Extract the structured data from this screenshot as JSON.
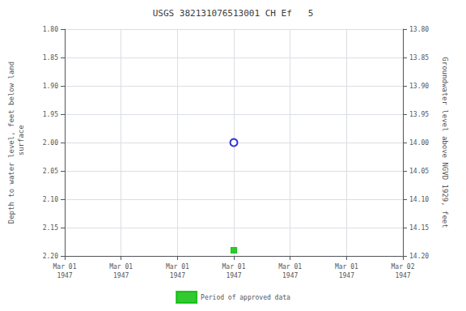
{
  "chart_data": {
    "type": "scatter",
    "title": "USGS 382131076513001 CH Ef   5",
    "ylabel": "Depth to water level, feet below land\n surface",
    "y2label": "Groundwater level above NGVD 1929, feet",
    "categories": [
      "Mar 01\n1947",
      "Mar 01\n1947",
      "Mar 01\n1947",
      "Mar 01\n1947",
      "Mar 01\n1947",
      "Mar 01\n1947",
      "Mar 02\n1947"
    ],
    "series": [
      {
        "color": "#0000cc",
        "marker": "hollow_circle",
        "values": [
          null,
          null,
          null,
          2.0,
          null,
          null,
          null
        ]
      },
      {
        "name": "Period of approved data",
        "color": "#00bb00",
        "marker": "square",
        "values": [
          null,
          null,
          null,
          2.19,
          null,
          null,
          null
        ]
      }
    ],
    "ylim": [
      2.2,
      1.8
    ],
    "yticks": [
      {
        "value": 1.8,
        "label": "1.80"
      },
      1.85,
      {
        "value": 1.9,
        "label": "1.90"
      },
      1.95,
      {
        "value": 2.0,
        "label": "2.00"
      },
      2.05,
      {
        "value": 2.1,
        "label": "2.10"
      },
      2.15,
      {
        "value": 2.2,
        "label": "2.20"
      }
    ],
    "y2lim": [
      14.2,
      13.8
    ],
    "y2ticks": [
      {
        "value": 14.2,
        "label": "14.20"
      },
      14.15,
      {
        "value": 14.1,
        "label": "14.10"
      },
      14.05,
      {
        "value": 14.0,
        "label": "14.00"
      },
      13.95,
      {
        "value": 13.9,
        "label": "13.90"
      },
      13.85,
      {
        "value": 13.8,
        "label": "13.80"
      }
    ],
    "grid": true,
    "legend": "bottom"
  }
}
